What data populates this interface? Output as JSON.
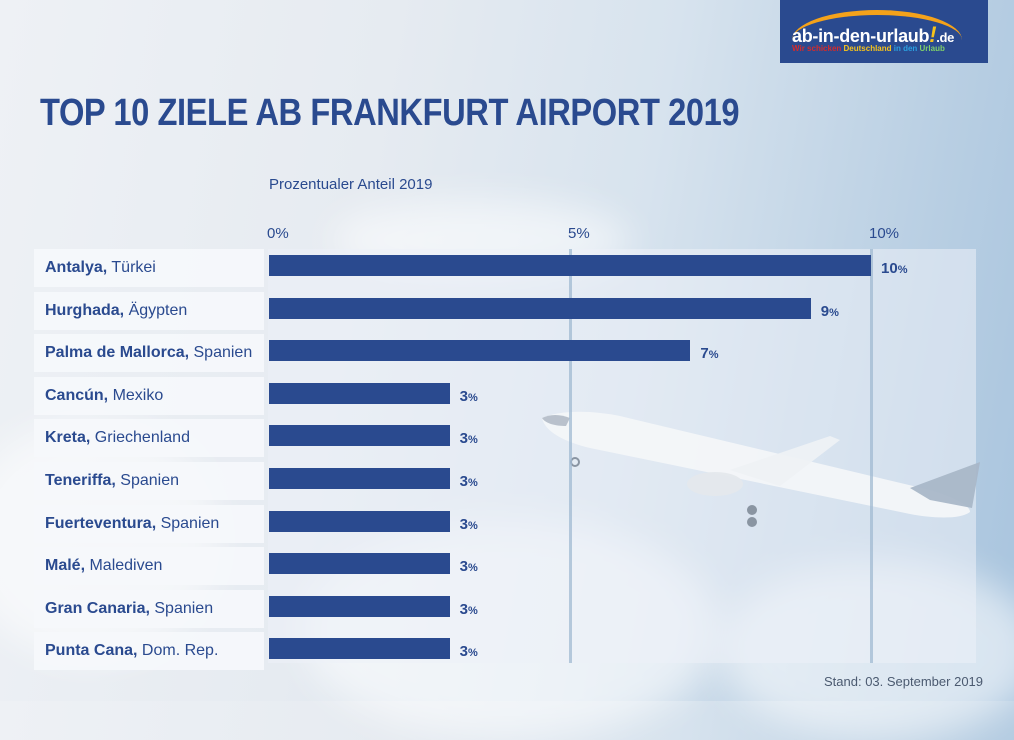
{
  "logo": {
    "brand": "ab-in-den-urlaub",
    "exclamation": "!",
    "tld": ".de",
    "tagline_parts": [
      "Wir schicken ",
      "Deutschland",
      " in den ",
      "Urlaub"
    ]
  },
  "footer": {
    "stand": "Stand: 03. September 2019"
  },
  "chart_data": {
    "type": "bar",
    "orientation": "horizontal",
    "title": "TOP 10 ZIELE AB FRANKFURT AIRPORT 2019",
    "xlabel": "Prozentualer Anteil 2019",
    "ylabel": "",
    "xlim": [
      0,
      11.75
    ],
    "ticks": [
      {
        "value": 0,
        "label": "0%"
      },
      {
        "value": 5,
        "label": "5%"
      },
      {
        "value": 10,
        "label": "10%"
      }
    ],
    "grid": true,
    "categories": [
      {
        "city": "Antalya,",
        "country": " Türkei"
      },
      {
        "city": "Hurghada,",
        "country": " Ägypten"
      },
      {
        "city": "Palma de Mallorca,",
        "country": " Spanien"
      },
      {
        "city": "Cancún,",
        "country": " Mexiko"
      },
      {
        "city": "Kreta,",
        "country": " Griechenland"
      },
      {
        "city": "Teneriffa,",
        "country": " Spanien"
      },
      {
        "city": "Fuerteventura,",
        "country": " Spanien"
      },
      {
        "city": "Malé,",
        "country": " Malediven"
      },
      {
        "city": "Gran Canaria,",
        "country": " Spanien"
      },
      {
        "city": "Punta Cana,",
        "country": " Dom. Rep."
      }
    ],
    "values": [
      10,
      9,
      7,
      3,
      3,
      3,
      3,
      3,
      3,
      3
    ],
    "value_labels": [
      "10",
      "9",
      "7",
      "3",
      "3",
      "3",
      "3",
      "3",
      "3",
      "3"
    ],
    "unit": "%",
    "bar_color": "#2a4a8f"
  }
}
